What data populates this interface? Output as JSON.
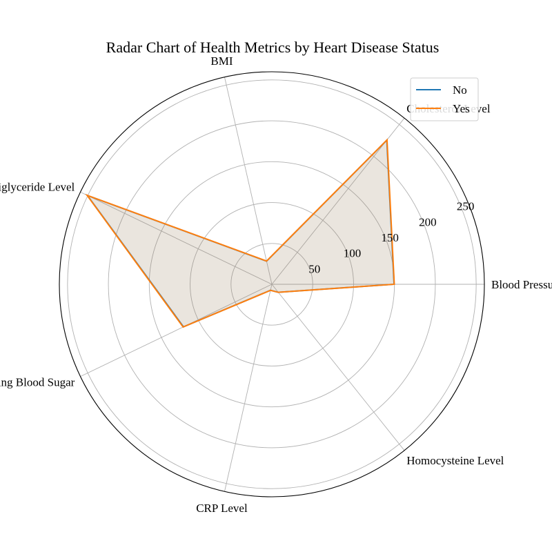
{
  "chart_data": {
    "type": "radar",
    "title": "Radar Chart of Health Metrics by Heart Disease Status",
    "axes": [
      "Blood Pressure",
      "Cholesterol Level",
      "BMI",
      "Triglyceride Level",
      "Fasting Blood Sugar",
      "CRP Level",
      "Homocysteine Level"
    ],
    "rlim": [
      0,
      260
    ],
    "rticks": [
      50,
      100,
      150,
      200,
      250
    ],
    "rtick_labels": [
      "50",
      "100",
      "150",
      "200",
      "250"
    ],
    "grid": true,
    "legend_position": "top-right",
    "series": [
      {
        "name": "No",
        "color": "#1f77b4",
        "values": [
          149.5,
          225.5,
          29.0,
          250.5,
          120.0,
          7.5,
          12.5
        ]
      },
      {
        "name": "Yes",
        "color": "#ff7f0e",
        "values": [
          149.8,
          226.0,
          29.2,
          251.0,
          120.5,
          7.6,
          12.6
        ]
      }
    ]
  }
}
